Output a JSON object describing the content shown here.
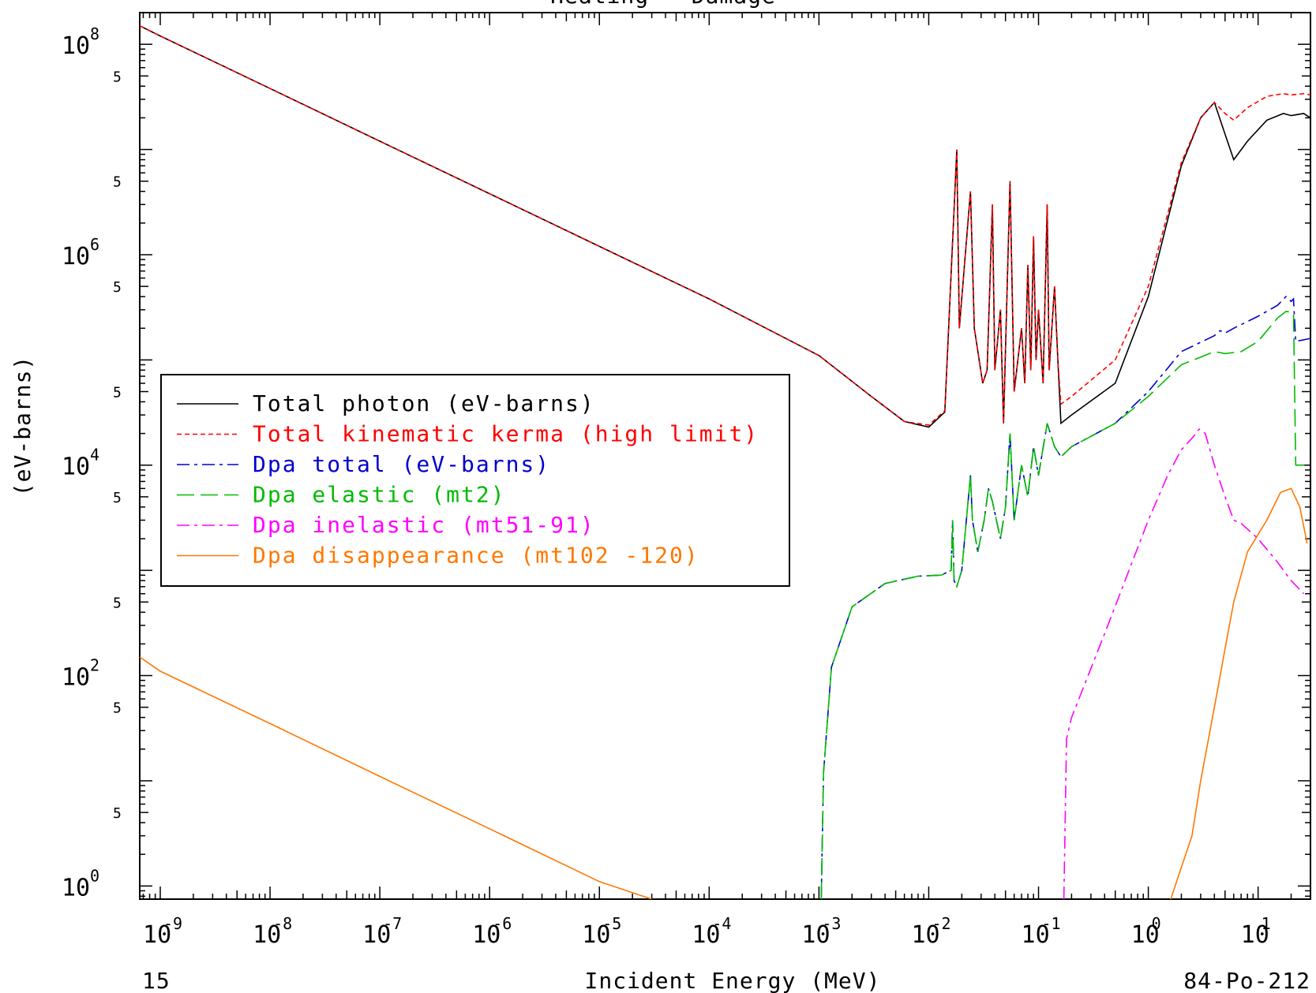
{
  "chart_data": {
    "type": "line",
    "title": "Heating - Damage",
    "xlabel": "Incident Energy (MeV)",
    "ylabel": "(eV-barns)",
    "x_scale": "log",
    "y_scale": "log",
    "xlim": [
      6.5e-10,
      30
    ],
    "ylim": [
      0.75,
      200000000
    ],
    "x_ticks": [
      {
        "base": "10",
        "exp": "-9",
        "value": 1e-09
      },
      {
        "base": "10",
        "exp": "-8",
        "value": 1e-08
      },
      {
        "base": "10",
        "exp": "-7",
        "value": 1e-07
      },
      {
        "base": "10",
        "exp": "-6",
        "value": 1e-06
      },
      {
        "base": "10",
        "exp": "-5",
        "value": 1e-05
      },
      {
        "base": "10",
        "exp": "-4",
        "value": 0.0001
      },
      {
        "base": "10",
        "exp": "-3",
        "value": 0.001
      },
      {
        "base": "10",
        "exp": "-2",
        "value": 0.01
      },
      {
        "base": "10",
        "exp": "-1",
        "value": 0.1
      },
      {
        "base": "10",
        "exp": "0",
        "value": 1
      },
      {
        "base": "10",
        "exp": "1",
        "value": 10
      }
    ],
    "y_ticks": [
      {
        "base": "10",
        "exp": "8",
        "value": 100000000.0
      },
      {
        "base": "10",
        "exp": "6",
        "value": 1000000.0
      },
      {
        "base": "10",
        "exp": "4",
        "value": 10000.0
      },
      {
        "base": "10",
        "exp": "2",
        "value": 100.0
      },
      {
        "base": "10",
        "exp": "0",
        "value": 1
      }
    ],
    "y_five_label": "5",
    "y_five_values": [
      50000000.0,
      5000000.0,
      500000.0,
      50000.0,
      5000.0,
      500,
      50,
      5
    ],
    "footer_left": "15",
    "footer_right": "84-Po-212",
    "legend_position": "center-left",
    "series": [
      {
        "name": "Total photon (eV-barns)",
        "color": "#000000",
        "dash": "solid",
        "points": [
          [
            6.5e-10,
            150000000
          ],
          [
            1e-09,
            120000000
          ],
          [
            1e-08,
            38000000
          ],
          [
            1e-07,
            12000000
          ],
          [
            1e-06,
            3800000
          ],
          [
            1e-05,
            1200000
          ],
          [
            0.0001,
            380000
          ],
          [
            0.001,
            110000
          ],
          [
            0.003,
            45000
          ],
          [
            0.006,
            26000
          ],
          [
            0.01,
            23000
          ],
          [
            0.014,
            32000
          ],
          [
            0.018,
            10000000
          ],
          [
            0.019,
            200000
          ],
          [
            0.024,
            4000000
          ],
          [
            0.026,
            200000
          ],
          [
            0.031,
            60000
          ],
          [
            0.034,
            80000
          ],
          [
            0.038,
            3000000
          ],
          [
            0.04,
            80000
          ],
          [
            0.045,
            300000
          ],
          [
            0.048,
            25000
          ],
          [
            0.055,
            5000000
          ],
          [
            0.06,
            50000
          ],
          [
            0.07,
            200000
          ],
          [
            0.075,
            60000
          ],
          [
            0.08,
            800000
          ],
          [
            0.085,
            80000
          ],
          [
            0.09,
            1500000
          ],
          [
            0.095,
            100000
          ],
          [
            0.1,
            300000
          ],
          [
            0.11,
            60000
          ],
          [
            0.12,
            3000000
          ],
          [
            0.125,
            80000
          ],
          [
            0.14,
            500000
          ],
          [
            0.15,
            100000
          ],
          [
            0.16,
            25000
          ],
          [
            0.2,
            30000
          ],
          [
            0.5,
            60000
          ],
          [
            1,
            400000
          ],
          [
            2,
            7000000
          ],
          [
            3,
            20000000
          ],
          [
            4,
            28000000
          ],
          [
            5,
            14000000
          ],
          [
            6,
            8000000
          ],
          [
            8,
            12000000
          ],
          [
            12,
            19000000
          ],
          [
            17,
            22000000
          ],
          [
            20,
            21000000
          ],
          [
            26,
            22000000
          ],
          [
            30,
            20000000
          ]
        ]
      },
      {
        "name": "Total kinematic kerma (high limit)",
        "color": "#ff0000",
        "dash": "shortdash",
        "points": [
          [
            6.5e-10,
            150000000
          ],
          [
            1e-09,
            120000000
          ],
          [
            1e-08,
            38000000
          ],
          [
            1e-07,
            12000000
          ],
          [
            1e-06,
            3800000
          ],
          [
            1e-05,
            1200000
          ],
          [
            0.0001,
            380000
          ],
          [
            0.001,
            110000
          ],
          [
            0.003,
            45000
          ],
          [
            0.006,
            26000
          ],
          [
            0.01,
            24000
          ],
          [
            0.014,
            33000
          ],
          [
            0.018,
            10000000
          ],
          [
            0.019,
            200000
          ],
          [
            0.024,
            4000000
          ],
          [
            0.026,
            200000
          ],
          [
            0.031,
            60000
          ],
          [
            0.034,
            80000
          ],
          [
            0.038,
            3000000
          ],
          [
            0.04,
            80000
          ],
          [
            0.045,
            300000
          ],
          [
            0.048,
            25000
          ],
          [
            0.055,
            5000000
          ],
          [
            0.06,
            50000
          ],
          [
            0.07,
            200000
          ],
          [
            0.075,
            60000
          ],
          [
            0.08,
            800000
          ],
          [
            0.085,
            80000
          ],
          [
            0.09,
            1500000
          ],
          [
            0.095,
            100000
          ],
          [
            0.1,
            300000
          ],
          [
            0.11,
            60000
          ],
          [
            0.12,
            3000000
          ],
          [
            0.125,
            80000
          ],
          [
            0.14,
            500000
          ],
          [
            0.15,
            100000
          ],
          [
            0.16,
            38000
          ],
          [
            0.2,
            45000
          ],
          [
            0.5,
            100000
          ],
          [
            1,
            500000
          ],
          [
            2,
            7500000
          ],
          [
            3,
            20000000
          ],
          [
            4,
            28000000
          ],
          [
            5,
            22000000
          ],
          [
            6,
            19000000
          ],
          [
            8,
            25000000
          ],
          [
            12,
            32000000
          ],
          [
            17,
            34000000
          ],
          [
            20,
            33000000
          ],
          [
            26,
            34000000
          ],
          [
            30,
            33000000
          ]
        ]
      },
      {
        "name": "Dpa total (eV-barns)",
        "color": "#0000cc",
        "dash": "dashdot",
        "points": [
          [
            0.00105,
            0.75
          ],
          [
            0.0011,
            12
          ],
          [
            0.0013,
            120
          ],
          [
            0.002,
            450
          ],
          [
            0.004,
            750
          ],
          [
            0.008,
            880
          ],
          [
            0.013,
            900
          ],
          [
            0.016,
            1000
          ],
          [
            0.0165,
            3000
          ],
          [
            0.017,
            800
          ],
          [
            0.018,
            700
          ],
          [
            0.02,
            1000
          ],
          [
            0.024,
            8000
          ],
          [
            0.025,
            3000
          ],
          [
            0.028,
            1500
          ],
          [
            0.032,
            3000
          ],
          [
            0.035,
            6000
          ],
          [
            0.038,
            4500
          ],
          [
            0.045,
            2000
          ],
          [
            0.05,
            4000
          ],
          [
            0.055,
            20000
          ],
          [
            0.06,
            3000
          ],
          [
            0.07,
            10000
          ],
          [
            0.08,
            5000
          ],
          [
            0.09,
            15000
          ],
          [
            0.1,
            8000
          ],
          [
            0.12,
            25000
          ],
          [
            0.14,
            15000
          ],
          [
            0.16,
            12000
          ],
          [
            0.2,
            15000
          ],
          [
            0.5,
            25000
          ],
          [
            1,
            50000
          ],
          [
            2,
            120000
          ],
          [
            4,
            170000
          ],
          [
            4.5,
            190000
          ],
          [
            5,
            180000
          ],
          [
            6,
            200000
          ],
          [
            10,
            260000
          ],
          [
            15,
            330000
          ],
          [
            18,
            400000
          ],
          [
            20,
            360000
          ],
          [
            21,
            380000
          ],
          [
            22,
            150000
          ],
          [
            30,
            160000
          ]
        ]
      },
      {
        "name": "Dpa elastic (mt2)",
        "color": "#00bb00",
        "dash": "longdash",
        "points": [
          [
            0.00105,
            0.75
          ],
          [
            0.0011,
            12
          ],
          [
            0.0013,
            120
          ],
          [
            0.002,
            450
          ],
          [
            0.004,
            750
          ],
          [
            0.008,
            880
          ],
          [
            0.013,
            900
          ],
          [
            0.016,
            1000
          ],
          [
            0.0165,
            3000
          ],
          [
            0.017,
            800
          ],
          [
            0.018,
            700
          ],
          [
            0.02,
            1000
          ],
          [
            0.024,
            8000
          ],
          [
            0.025,
            3000
          ],
          [
            0.028,
            1500
          ],
          [
            0.032,
            3000
          ],
          [
            0.035,
            6000
          ],
          [
            0.038,
            4500
          ],
          [
            0.045,
            2000
          ],
          [
            0.05,
            4000
          ],
          [
            0.055,
            20000
          ],
          [
            0.06,
            3000
          ],
          [
            0.07,
            10000
          ],
          [
            0.08,
            5000
          ],
          [
            0.09,
            15000
          ],
          [
            0.1,
            8000
          ],
          [
            0.12,
            25000
          ],
          [
            0.14,
            15000
          ],
          [
            0.16,
            12000
          ],
          [
            0.2,
            15000
          ],
          [
            0.5,
            25000
          ],
          [
            1,
            45000
          ],
          [
            2,
            90000
          ],
          [
            4,
            120000
          ],
          [
            5,
            115000
          ],
          [
            7,
            120000
          ],
          [
            10,
            150000
          ],
          [
            15,
            250000
          ],
          [
            18,
            290000
          ],
          [
            21,
            280000
          ],
          [
            22,
            10000
          ],
          [
            30,
            10000
          ]
        ]
      },
      {
        "name": "Dpa inelastic (mt51-91)",
        "color": "#ff00ff",
        "dash": "dashdot",
        "points": [
          [
            0.17,
            0.75
          ],
          [
            0.18,
            25
          ],
          [
            0.2,
            40
          ],
          [
            0.4,
            250
          ],
          [
            1,
            3000
          ],
          [
            1.5,
            8000
          ],
          [
            2,
            14000
          ],
          [
            2.5,
            18000
          ],
          [
            2.9,
            22000
          ],
          [
            3.3,
            20000
          ],
          [
            4,
            10000
          ],
          [
            5,
            5000
          ],
          [
            6,
            3000
          ],
          [
            7,
            2800
          ],
          [
            10,
            2000
          ],
          [
            15,
            1200
          ],
          [
            20,
            800
          ],
          [
            26,
            600
          ]
        ]
      },
      {
        "name": "Dpa disappearance (mt102 -120)",
        "color": "#ff7700",
        "dash": "solid",
        "points": [
          [
            6.5e-10,
            150
          ],
          [
            1e-09,
            110
          ],
          [
            1e-08,
            35
          ],
          [
            1e-07,
            11
          ],
          [
            1e-06,
            3.5
          ],
          [
            1e-05,
            1.1
          ],
          [
            3e-05,
            0.75
          ]
        ]
      },
      {
        "name": "",
        "color": "#ff7700",
        "dash": "solid",
        "points": [
          [
            1.6,
            0.75
          ],
          [
            2,
            1.5
          ],
          [
            2.5,
            3
          ],
          [
            3,
            10
          ],
          [
            4,
            50
          ],
          [
            5,
            180
          ],
          [
            6,
            500
          ],
          [
            8,
            1500
          ],
          [
            12,
            3000
          ],
          [
            16,
            5500
          ],
          [
            20,
            6000
          ],
          [
            24,
            4000
          ],
          [
            28,
            1800
          ]
        ]
      }
    ]
  }
}
